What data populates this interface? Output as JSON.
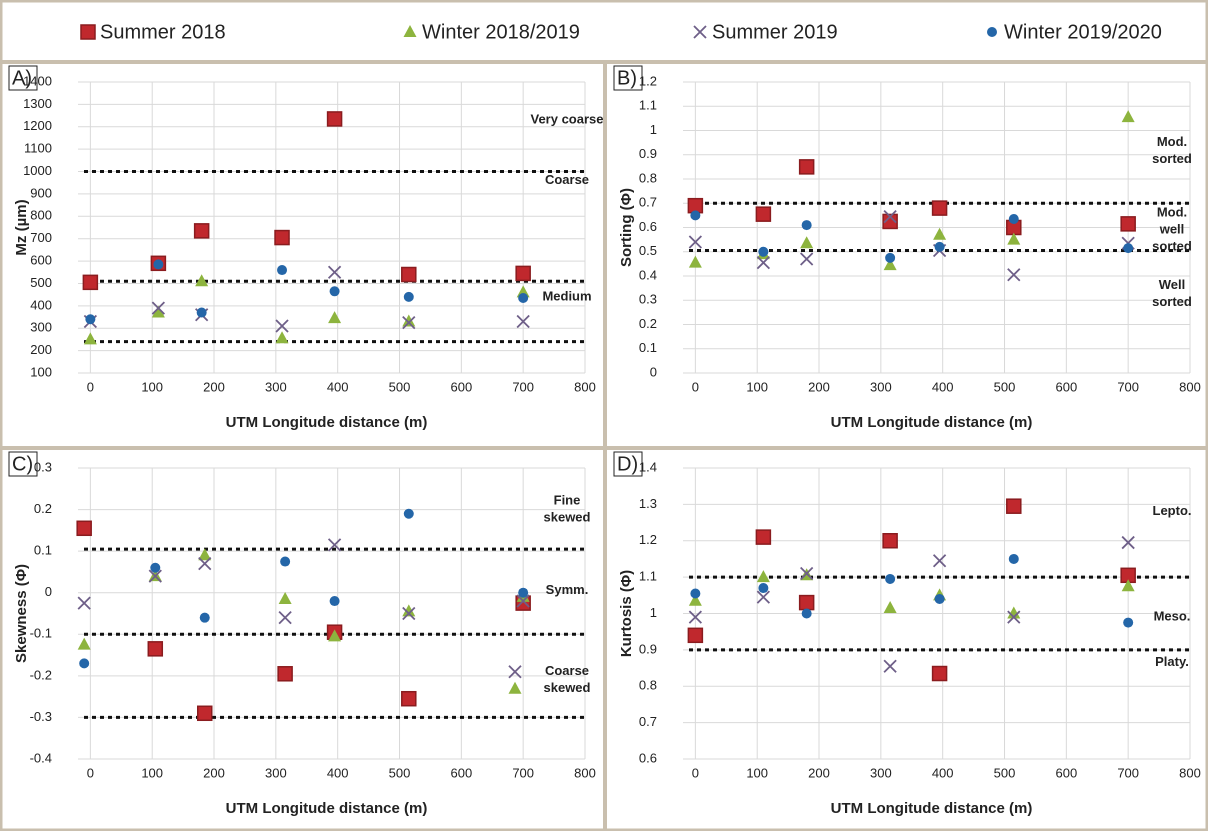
{
  "chart_data": [
    {
      "type": "scatter",
      "label": "A)",
      "ylabel": "Mz (µm)",
      "xlabel": "UTM Longitude distance (m)",
      "x": [
        0,
        110,
        180,
        310,
        395,
        515,
        700
      ],
      "xlim": [
        -20,
        800
      ],
      "xticks": [
        0,
        100,
        200,
        300,
        400,
        500,
        600,
        700,
        800
      ],
      "ylim": [
        100,
        1400
      ],
      "yticks": [
        100,
        200,
        300,
        400,
        500,
        600,
        700,
        800,
        900,
        1000,
        1100,
        1200,
        1300,
        1400
      ],
      "grid": true,
      "thresholds": [
        1000,
        510,
        240
      ],
      "annotations": [
        {
          "text": [
            "Very coarse"
          ],
          "y": 1230
        },
        {
          "text": [
            "Coarse"
          ],
          "y": 960
        },
        {
          "text": [
            "Medium"
          ],
          "y": 440
        }
      ],
      "series": [
        {
          "name": "Summer 2018",
          "color": "#c0282d",
          "marker": "square",
          "values": [
            505,
            590,
            735,
            705,
            1235,
            540,
            545
          ]
        },
        {
          "name": "Winter 2018/2019",
          "color": "#8db43e",
          "marker": "triangle",
          "values": [
            250,
            370,
            510,
            255,
            345,
            330,
            460
          ]
        },
        {
          "name": "Summer 2019",
          "color": "#6e5f88",
          "marker": "cross",
          "values": [
            330,
            390,
            360,
            310,
            550,
            325,
            330
          ]
        },
        {
          "name": "Winter 2019/2020",
          "color": "#2466a8",
          "marker": "circle",
          "values": [
            340,
            585,
            370,
            560,
            465,
            440,
            435
          ]
        }
      ]
    },
    {
      "type": "scatter",
      "label": "B)",
      "ylabel": "Sorting (Φ)",
      "xlabel": "UTM Longitude distance (m)",
      "x": [
        0,
        110,
        180,
        315,
        395,
        515,
        700
      ],
      "xlim": [
        -20,
        800
      ],
      "xticks": [
        0,
        100,
        200,
        300,
        400,
        500,
        600,
        700,
        800
      ],
      "ylim": [
        0,
        1.2
      ],
      "yticks": [
        0,
        0.1,
        0.2,
        0.3,
        0.4,
        0.5,
        0.6,
        0.7,
        0.8,
        0.9,
        1,
        1.1,
        1.2
      ],
      "grid": true,
      "thresholds": [
        0.7,
        0.505
      ],
      "annotations": [
        {
          "text": [
            "Mod.",
            "sorted"
          ],
          "y": 0.95
        },
        {
          "text": [
            "Mod.",
            "well",
            "sorted"
          ],
          "y": 0.66
        },
        {
          "text": [
            "Well",
            "sorted"
          ],
          "y": 0.36
        }
      ],
      "series": [
        {
          "name": "Summer 2018",
          "color": "#c0282d",
          "marker": "square",
          "values": [
            0.69,
            0.655,
            0.85,
            0.625,
            0.68,
            0.6,
            0.615
          ]
        },
        {
          "name": "Winter 2018/2019",
          "color": "#8db43e",
          "marker": "triangle",
          "values": [
            0.455,
            0.49,
            0.535,
            0.445,
            0.57,
            0.55,
            1.055
          ]
        },
        {
          "name": "Summer 2019",
          "color": "#6e5f88",
          "marker": "cross",
          "values": [
            0.54,
            0.455,
            0.47,
            0.645,
            0.505,
            0.405,
            0.535
          ]
        },
        {
          "name": "Winter 2019/2020",
          "color": "#2466a8",
          "marker": "circle",
          "values": [
            0.65,
            0.5,
            0.61,
            0.475,
            0.52,
            0.635,
            0.515
          ]
        }
      ]
    },
    {
      "type": "scatter",
      "label": "C)",
      "ylabel": "Skewness (Φ)",
      "xlabel": "UTM Longitude distance (m)",
      "x": [
        -10,
        105,
        185,
        315,
        395,
        515,
        700
      ],
      "xlim": [
        -20,
        800
      ],
      "xticks": [
        0,
        100,
        200,
        300,
        400,
        500,
        600,
        700,
        800
      ],
      "ylim": [
        -0.4,
        0.3
      ],
      "yticks": [
        -0.4,
        -0.3,
        -0.2,
        -0.1,
        0,
        0.1,
        0.2,
        0.3
      ],
      "grid": true,
      "thresholds": [
        0.105,
        -0.1,
        -0.3
      ],
      "annotations": [
        {
          "text": [
            "Fine",
            "skewed"
          ],
          "y": 0.22
        },
        {
          "text": [
            "Symm."
          ],
          "y": 0.005
        },
        {
          "text": [
            "Coarse",
            "skewed"
          ],
          "y": -0.19
        }
      ],
      "series": [
        {
          "name": "Summer 2018",
          "color": "#c0282d",
          "marker": "square",
          "values": [
            0.155,
            -0.135,
            -0.29,
            -0.195,
            -0.095,
            -0.255,
            -0.025
          ]
        },
        {
          "name": "Winter 2018/2019",
          "color": "#8db43e",
          "marker": "triangle",
          "values": [
            -0.125,
            0.04,
            0.09,
            -0.015,
            -0.105,
            -0.045,
            -0.01
          ]
        },
        {
          "name": "Summer 2019",
          "color": "#6e5f88",
          "marker": "cross",
          "values": [
            -0.025,
            0.04,
            0.07,
            -0.06,
            0.115,
            -0.05,
            -0.02
          ]
        },
        {
          "name": "Winter 2019/2020",
          "color": "#2466a8",
          "marker": "circle",
          "values": [
            -0.17,
            0.06,
            -0.06,
            0.075,
            -0.02,
            0.19,
            0
          ]
        }
      ]
    },
    {
      "type": "scatter",
      "label": "D)",
      "ylabel": "Kurtosis (Φ)",
      "xlabel": "UTM Longitude distance (m)",
      "x": [
        0,
        110,
        180,
        315,
        395,
        515,
        700
      ],
      "xlim": [
        -20,
        800
      ],
      "xticks": [
        0,
        100,
        200,
        300,
        400,
        500,
        600,
        700,
        800
      ],
      "ylim": [
        0.6,
        1.4
      ],
      "yticks": [
        0.6,
        0.7,
        0.8,
        0.9,
        1,
        1.1,
        1.2,
        1.3,
        1.4
      ],
      "grid": true,
      "thresholds": [
        1.1,
        0.9
      ],
      "annotations": [
        {
          "text": [
            "Lepto."
          ],
          "y": 1.28
        },
        {
          "text": [
            "Meso."
          ],
          "y": 0.99
        },
        {
          "text": [
            "Platy."
          ],
          "y": 0.865
        }
      ],
      "series": [
        {
          "name": "Summer 2018",
          "color": "#c0282d",
          "marker": "square",
          "values": [
            0.94,
            1.21,
            1.03,
            1.2,
            0.835,
            1.295,
            1.105
          ]
        },
        {
          "name": "Winter 2018/2019",
          "color": "#8db43e",
          "marker": "triangle",
          "values": [
            1.035,
            1.1,
            1.105,
            1.015,
            1.05,
            1.0,
            1.075
          ]
        },
        {
          "name": "Summer 2019",
          "color": "#6e5f88",
          "marker": "cross",
          "values": [
            0.99,
            1.045,
            1.11,
            0.855,
            1.145,
            0.99,
            1.195
          ]
        },
        {
          "name": "Winter 2019/2020",
          "color": "#2466a8",
          "marker": "circle",
          "values": [
            1.055,
            1.07,
            1.0,
            1.095,
            1.04,
            1.15,
            0.975
          ]
        }
      ]
    }
  ]
}
